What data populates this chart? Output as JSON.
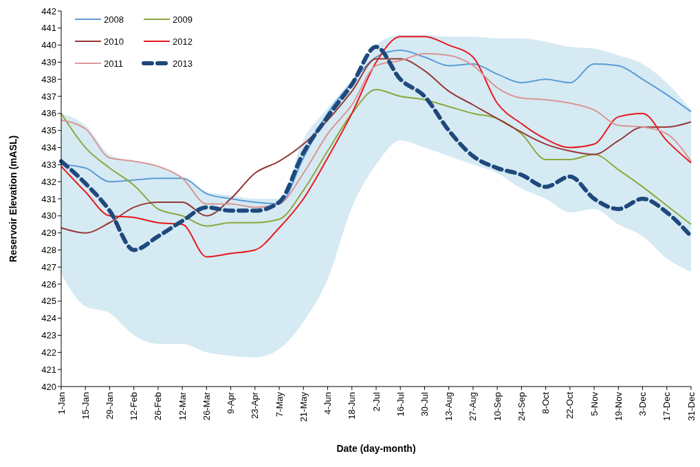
{
  "chart_data": {
    "type": "line",
    "xlabel": "Date (day-month)",
    "ylabel": "Reservoir Elevation (mASL)",
    "x": [
      "--01-01",
      "--01-15",
      "--01-29",
      "--02-12",
      "--02-26",
      "--03-12",
      "--03-26",
      "--04-09",
      "--04-23",
      "--05-07",
      "--05-21",
      "--06-04",
      "--06-18",
      "--07-02",
      "--07-16",
      "--07-30",
      "--08-13",
      "--08-27",
      "--09-10",
      "--09-24",
      "--10-08",
      "--10-22",
      "--11-05",
      "--11-19",
      "--12-03",
      "--12-17",
      "--12-31"
    ],
    "xlim": [
      "--01-01",
      "--12-31"
    ],
    "xticks": [
      {
        "value": "--01-01",
        "label": "1-Jan"
      },
      {
        "value": "--01-15",
        "label": "15-Jan"
      },
      {
        "value": "--01-29",
        "label": "29-Jan"
      },
      {
        "value": "--02-12",
        "label": "12-Feb"
      },
      {
        "value": "--02-26",
        "label": "26-Feb"
      },
      {
        "value": "--03-12",
        "label": "12-Mar"
      },
      {
        "value": "--03-26",
        "label": "26-Mar"
      },
      {
        "value": "--04-09",
        "label": "9-Apr"
      },
      {
        "value": "--04-23",
        "label": "23-Apr"
      },
      {
        "value": "--05-07",
        "label": "7-May"
      },
      {
        "value": "--05-21",
        "label": "21-May"
      },
      {
        "value": "--06-04",
        "label": "4-Jun"
      },
      {
        "value": "--06-18",
        "label": "18-Jun"
      },
      {
        "value": "--07-02",
        "label": "2-Jul"
      },
      {
        "value": "--07-16",
        "label": "16-Jul"
      },
      {
        "value": "--07-30",
        "label": "30-Jul"
      },
      {
        "value": "--08-13",
        "label": "13-Aug"
      },
      {
        "value": "--08-27",
        "label": "27-Aug"
      },
      {
        "value": "--09-10",
        "label": "10-Sep"
      },
      {
        "value": "--09-24",
        "label": "24-Sep"
      },
      {
        "value": "--10-08",
        "label": "8-Oct"
      },
      {
        "value": "--10-22",
        "label": "22-Oct"
      },
      {
        "value": "--11-05",
        "label": "5-Nov"
      },
      {
        "value": "--11-19",
        "label": "19-Nov"
      },
      {
        "value": "--12-03",
        "label": "3-Dec"
      },
      {
        "value": "--12-17",
        "label": "17-Dec"
      },
      {
        "value": "--12-31",
        "label": "31-Dec"
      }
    ],
    "ylim": [
      420,
      442
    ],
    "yticks": [
      420,
      421,
      422,
      423,
      424,
      425,
      426,
      427,
      428,
      429,
      430,
      431,
      432,
      433,
      434,
      435,
      436,
      437,
      438,
      439,
      440,
      441,
      442
    ],
    "grid": false,
    "legend": "top left",
    "series": [
      {
        "type": "area",
        "color": "#d6eaf3",
        "values": [
          436.0,
          435.3,
          433.6,
          433.2,
          432.9,
          432.3,
          431.4,
          431.2,
          431.0,
          431.0,
          434.5,
          436.3,
          438.0,
          440.0,
          440.6,
          440.6,
          440.5,
          440.5,
          440.4,
          440.4,
          440.2,
          439.9,
          439.8,
          439.4,
          438.9,
          437.8,
          436.2
        ]
      },
      {
        "type": "area",
        "color": "#ffffff",
        "values": [
          426.6,
          424.7,
          424.3,
          423.0,
          422.5,
          422.5,
          422.0,
          421.8,
          421.7,
          422.2,
          423.8,
          426.3,
          430.5,
          433.0,
          434.4,
          434.0,
          433.5,
          433.0,
          432.5,
          431.6,
          431.0,
          430.2,
          430.4,
          429.5,
          428.8,
          427.5,
          426.7
        ]
      },
      {
        "name": "2008",
        "color": "#5b9bd5",
        "line_style": "solid",
        "values": [
          433.0,
          432.8,
          432.0,
          432.1,
          432.2,
          432.2,
          431.3,
          431.0,
          430.8,
          430.7,
          433.4,
          436.0,
          437.8,
          439.3,
          439.7,
          439.3,
          438.8,
          438.9,
          438.3,
          437.8,
          438.0,
          437.8,
          438.9,
          438.8,
          438.0,
          437.1,
          436.1
        ]
      },
      {
        "name": "2009",
        "color": "#8aa83c",
        "line_style": "solid",
        "values": [
          436.0,
          434.0,
          432.8,
          431.8,
          430.4,
          430.0,
          429.4,
          429.6,
          429.6,
          429.8,
          431.5,
          433.8,
          436.0,
          437.4,
          437.0,
          436.8,
          436.4,
          436.0,
          435.7,
          434.8,
          433.3,
          433.3,
          433.6,
          432.7,
          431.7,
          430.6,
          429.5
        ]
      },
      {
        "name": "2010",
        "color": "#953735",
        "line_style": "solid",
        "values": [
          429.3,
          429.0,
          429.6,
          430.5,
          430.8,
          430.8,
          430.0,
          431.0,
          432.5,
          433.2,
          434.2,
          435.6,
          437.3,
          439.2,
          439.2,
          438.5,
          437.3,
          436.5,
          435.7,
          434.9,
          434.2,
          433.8,
          433.6,
          434.4,
          435.2,
          435.2,
          435.5
        ]
      },
      {
        "name": "2012",
        "color": "#e8161b",
        "line_style": "solid",
        "values": [
          432.9,
          431.4,
          430.0,
          429.9,
          429.6,
          429.5,
          427.6,
          427.8,
          428.0,
          429.3,
          431.0,
          433.4,
          436.0,
          439.0,
          440.5,
          440.5,
          440.0,
          439.3,
          436.6,
          435.4,
          434.5,
          434.0,
          434.2,
          435.8,
          436.0,
          434.4,
          433.1
        ]
      },
      {
        "name": "2011",
        "color": "#d99694",
        "line_style": "solid",
        "values": [
          435.6,
          435.1,
          433.4,
          433.2,
          432.9,
          432.2,
          430.7,
          430.7,
          430.5,
          430.7,
          432.5,
          434.8,
          436.5,
          438.8,
          439.1,
          439.5,
          439.4,
          438.8,
          437.5,
          436.9,
          436.8,
          436.6,
          436.2,
          435.3,
          435.2,
          434.8,
          433.2
        ]
      },
      {
        "name": "2013",
        "color": "#1f497d",
        "line_style": "dashed",
        "values": [
          433.2,
          431.9,
          430.3,
          428.0,
          428.8,
          429.7,
          430.5,
          430.3,
          430.3,
          430.8,
          433.7,
          435.8,
          437.7,
          439.9,
          438.0,
          437.0,
          435.0,
          433.5,
          432.8,
          432.4,
          431.7,
          432.3,
          431.0,
          430.4,
          431.0,
          430.2,
          428.8
        ]
      }
    ]
  }
}
